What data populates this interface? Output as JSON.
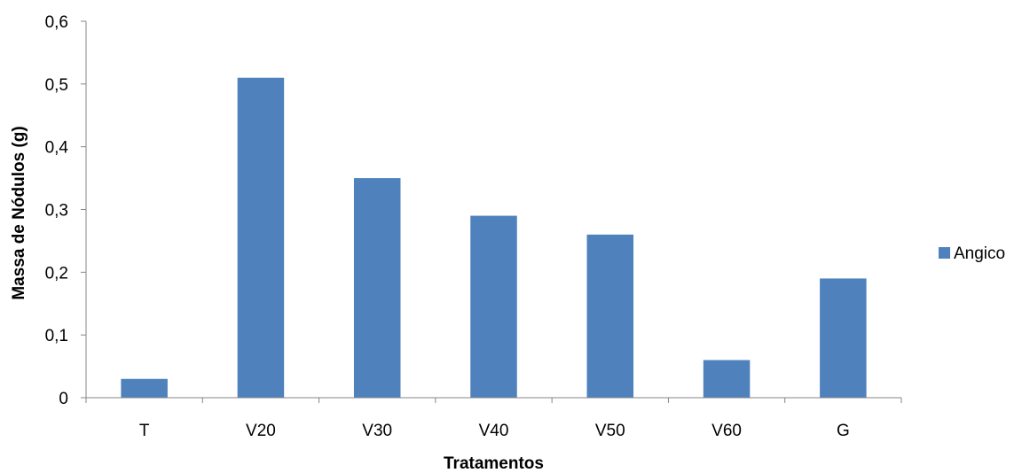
{
  "chart_data": {
    "type": "bar",
    "categories": [
      "T",
      "V20",
      "V30",
      "V40",
      "V50",
      "V60",
      "G"
    ],
    "series": [
      {
        "name": "Angico",
        "values": [
          0.03,
          0.51,
          0.35,
          0.29,
          0.26,
          0.06,
          0.19
        ],
        "color": "#4f81bd"
      }
    ],
    "xlabel": "Tratamentos",
    "ylabel": "Massa de Nódulos (g)",
    "ylim": [
      0,
      0.6
    ],
    "yticks": [
      0,
      0.1,
      0.2,
      0.3,
      0.4,
      0.5,
      0.6
    ],
    "ytick_labels": [
      "0",
      "0,1",
      "0,2",
      "0,3",
      "0,4",
      "0,5",
      "0,6"
    ],
    "grid": false,
    "legend_position": "right"
  }
}
